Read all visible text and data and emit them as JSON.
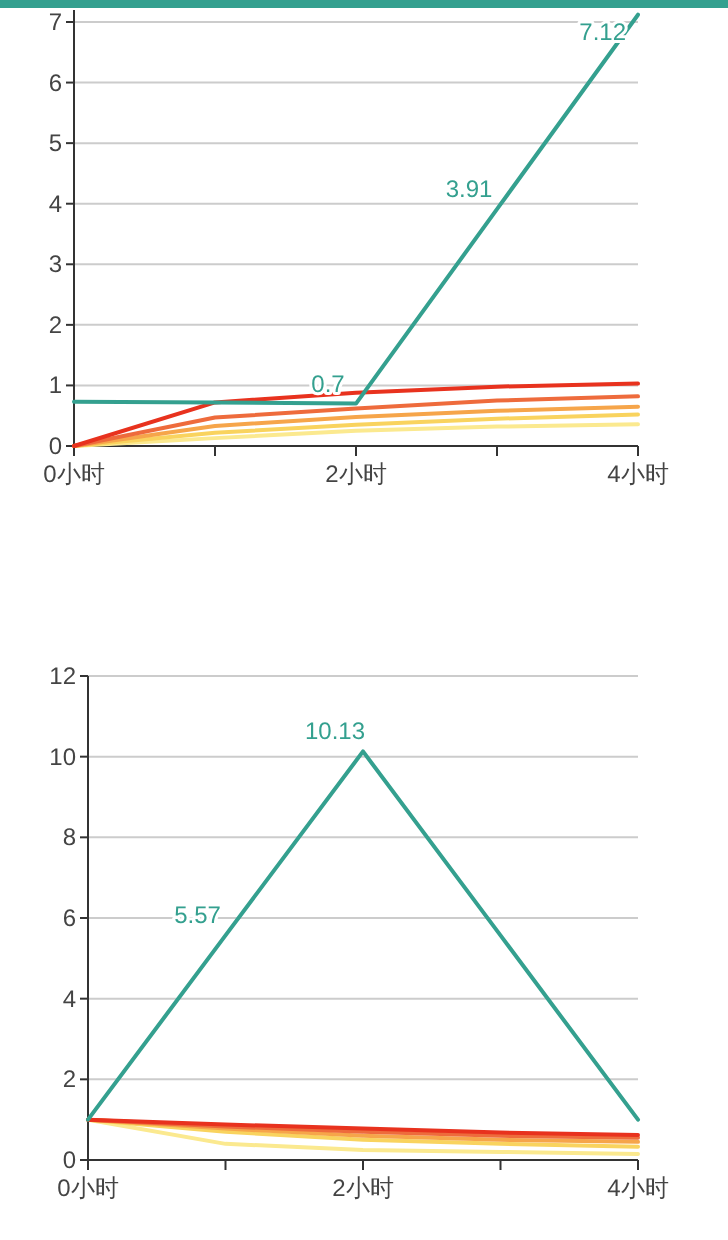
{
  "chart_data": [
    {
      "type": "line",
      "categories": [
        "0小时",
        null,
        "2小时",
        null,
        "4小时"
      ],
      "ylim": [
        0,
        7.2
      ],
      "yticks": [
        0,
        1,
        2,
        3,
        4,
        5,
        6,
        7
      ],
      "grid": "y",
      "marker": "none",
      "line_style": "solid",
      "series": [
        {
          "color": "#fbe98f",
          "values": [
            0,
            0.13,
            0.25,
            0.32,
            0.36
          ]
        },
        {
          "color": "#f9d35e",
          "values": [
            0,
            0.22,
            0.35,
            0.45,
            0.52
          ]
        },
        {
          "color": "#f6a54a",
          "values": [
            0,
            0.33,
            0.48,
            0.58,
            0.65
          ]
        },
        {
          "color": "#ee6b3c",
          "values": [
            0,
            0.47,
            0.62,
            0.75,
            0.82
          ]
        },
        {
          "color": "#e8321e",
          "values": [
            0,
            0.72,
            0.88,
            0.98,
            1.03
          ]
        },
        {
          "color": "#34a08f",
          "values": [
            0.73,
            0.72,
            0.7,
            3.91,
            7.12
          ],
          "value_labels": [
            null,
            null,
            "0.7",
            "3.91",
            "7.12"
          ]
        }
      ]
    },
    {
      "type": "line",
      "categories": [
        "0小时",
        null,
        "2小时",
        null,
        "4小时"
      ],
      "ylim": [
        0,
        12
      ],
      "yticks": [
        0,
        2,
        4,
        6,
        8,
        10,
        12
      ],
      "grid": "y",
      "marker": "none",
      "line_style": "solid",
      "series": [
        {
          "color": "#fbe98f",
          "values": [
            1,
            0.4,
            0.25,
            0.2,
            0.15
          ]
        },
        {
          "color": "#f9d35e",
          "values": [
            1,
            0.7,
            0.5,
            0.4,
            0.33
          ]
        },
        {
          "color": "#f6a54a",
          "values": [
            1,
            0.78,
            0.6,
            0.5,
            0.45
          ]
        },
        {
          "color": "#ee6b3c",
          "values": [
            1,
            0.83,
            0.7,
            0.6,
            0.55
          ]
        },
        {
          "color": "#e8321e",
          "values": [
            1,
            0.88,
            0.78,
            0.68,
            0.62
          ]
        },
        {
          "color": "#34a08f",
          "values": [
            1,
            5.57,
            10.13,
            5.57,
            1
          ],
          "value_labels": [
            null,
            "5.57",
            "10.13",
            null,
            null
          ]
        }
      ]
    }
  ]
}
